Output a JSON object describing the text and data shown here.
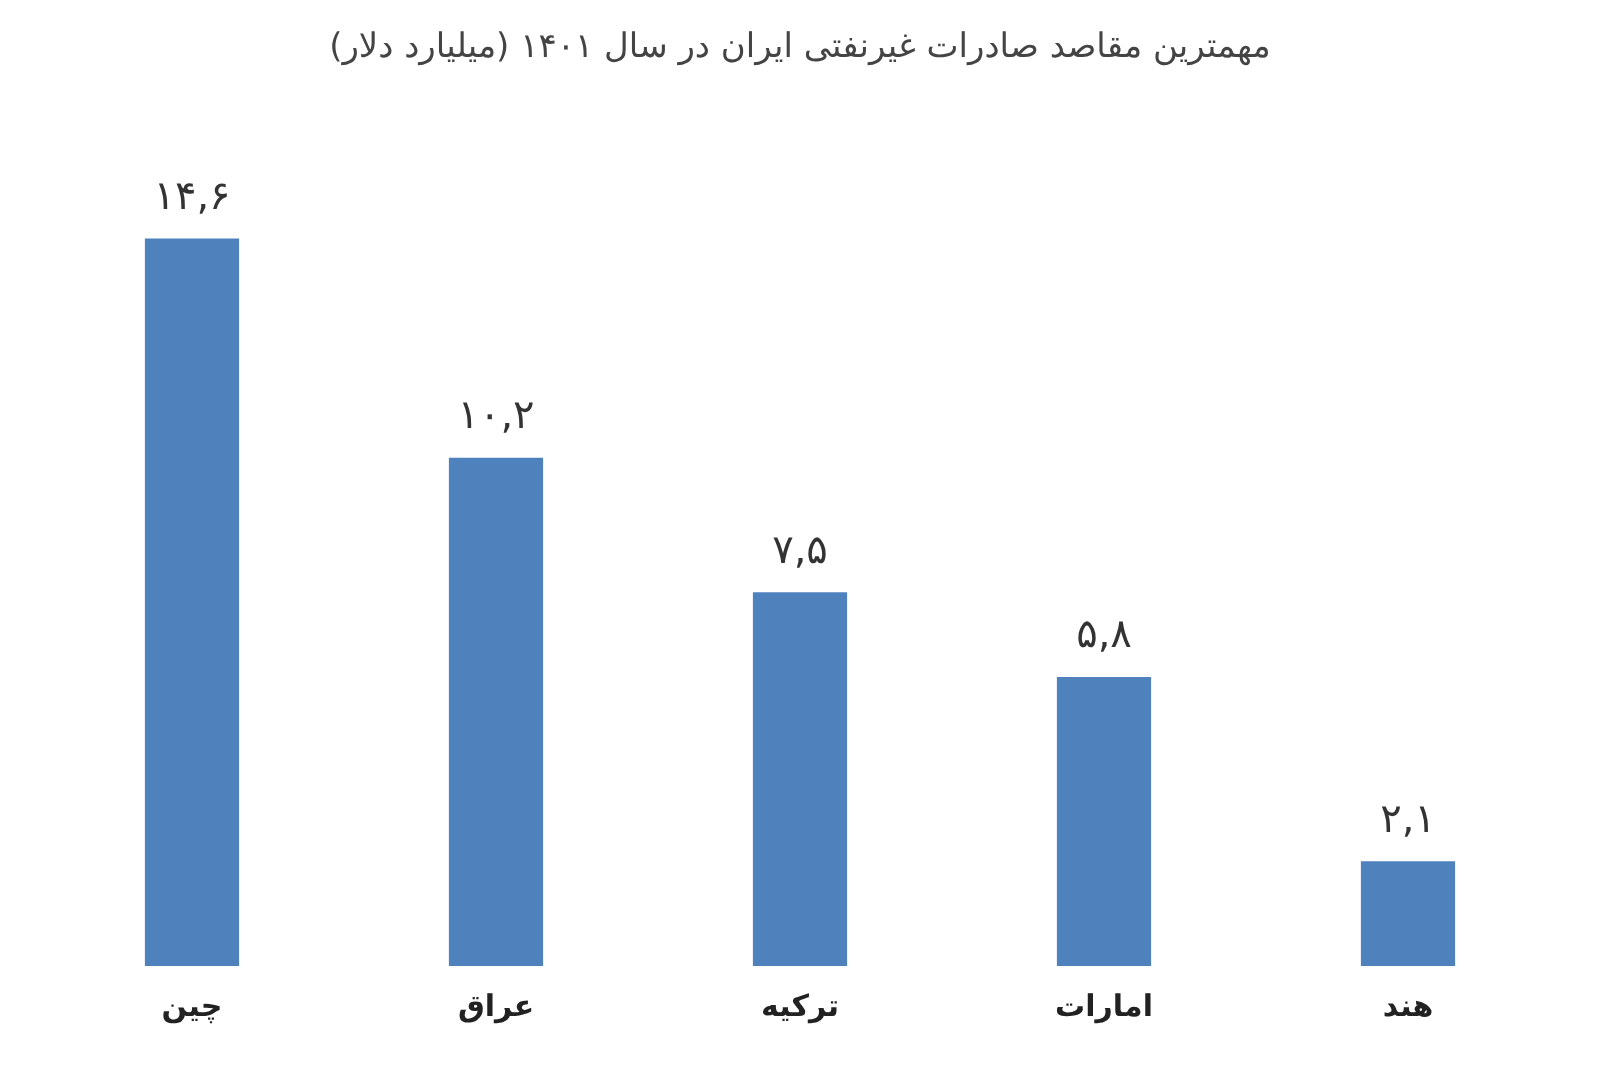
{
  "chart_data": {
    "type": "bar",
    "title": "مهمترین مقاصد صادرات غیرنفتی ایران در سال ۱۴۰۱ (میلیارد دلار)",
    "categories": [
      "چین",
      "عراق",
      "ترکیه",
      "امارات",
      "هند"
    ],
    "values": [
      14.6,
      10.2,
      7.5,
      5.8,
      2.1
    ],
    "value_labels": [
      "۱۴,۶",
      "۱۰,۲",
      "۷,۵",
      "۵,۸",
      "۲,۱"
    ],
    "color": "#4f81bd",
    "grid": false,
    "legend": false,
    "tick_labels": "x"
  }
}
